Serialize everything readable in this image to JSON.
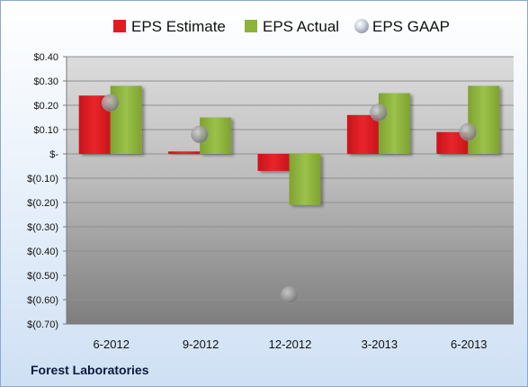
{
  "company": "Forest Laboratories",
  "chart_data": {
    "type": "bar",
    "categories": [
      "6-2012",
      "9-2012",
      "12-2012",
      "3-2013",
      "6-2013"
    ],
    "series": [
      {
        "name": "EPS Estimate",
        "kind": "bar",
        "color": "#e01b22",
        "values": [
          0.24,
          0.01,
          -0.07,
          0.16,
          0.09
        ]
      },
      {
        "name": "EPS Actual",
        "kind": "bar",
        "color": "#8db33a",
        "values": [
          0.28,
          0.15,
          -0.21,
          0.25,
          0.28
        ]
      },
      {
        "name": "EPS GAAP",
        "kind": "scatter",
        "color": "#b8c4d4",
        "values": [
          0.21,
          0.08,
          -0.58,
          0.17,
          0.09
        ]
      }
    ],
    "yticks": [
      0.4,
      0.3,
      0.2,
      0.1,
      0,
      -0.1,
      -0.2,
      -0.3,
      -0.4,
      -0.5,
      -0.6,
      -0.7
    ],
    "ytick_labels": [
      "$0.40",
      "$0.30",
      "$0.20",
      "$0.10",
      "$-",
      "$(0.10)",
      "$(0.20)",
      "$(0.30)",
      "$(0.40)",
      "$(0.50)",
      "$(0.60)",
      "$(0.70)"
    ],
    "ylim": [
      -0.7,
      0.4
    ],
    "legend_position": "top",
    "grid": true
  }
}
